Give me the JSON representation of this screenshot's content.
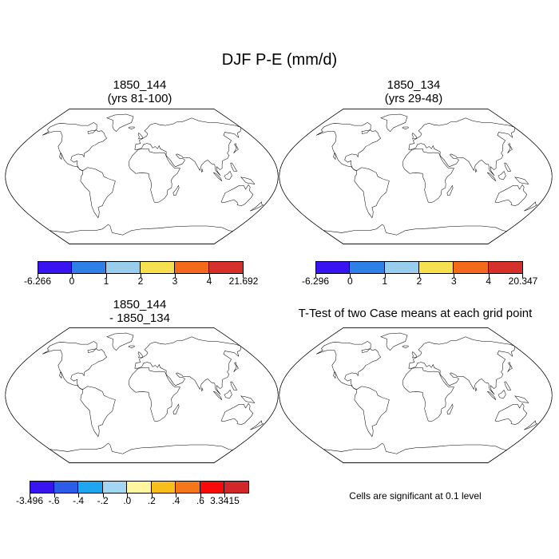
{
  "figure": {
    "title": "DJF P-E (mm/d)",
    "note": "Cells are significant at 0.1 level"
  },
  "panels": [
    {
      "id": "tl",
      "title_line1": "1850_144",
      "title_line2": "(yrs 81-100)",
      "kind": "field",
      "colorbar": {
        "labels": [
          "-6.266",
          "0",
          "1",
          "2",
          "3",
          "4",
          "21.692"
        ],
        "colors": [
          "#3a14f0",
          "#2f7fe8",
          "#98cdee",
          "#f6e04f",
          "#f56a1a",
          "#d6302c"
        ]
      }
    },
    {
      "id": "tr",
      "title_line1": "1850_134",
      "title_line2": "(yrs 29-48)",
      "kind": "field",
      "colorbar": {
        "labels": [
          "-6.296",
          "0",
          "1",
          "2",
          "3",
          "4",
          "20.347"
        ],
        "colors": [
          "#3a14f0",
          "#2f7fe8",
          "#98cdee",
          "#f6e04f",
          "#f56a1a",
          "#d6302c"
        ]
      }
    },
    {
      "id": "bl",
      "title_line1": "1850_144",
      "title_line2": "- 1850_134",
      "kind": "difference",
      "colorbar": {
        "labels": [
          "-3.496",
          "-.6",
          "-.4",
          "-.2",
          ".0",
          ".2",
          ".4",
          ".6",
          "3.3415"
        ],
        "colors": [
          "#3a14f0",
          "#2c5de8",
          "#1ea7f0",
          "#a2d6f2",
          "#fff7a0",
          "#f8be1c",
          "#f4781a",
          "#f80a0a",
          "#d1262a"
        ]
      }
    },
    {
      "id": "br",
      "title_line1": "T-Test of two Case means at each grid point",
      "title_line2": "",
      "kind": "significance",
      "colors": {
        "significant": "#ee0000"
      }
    }
  ]
}
